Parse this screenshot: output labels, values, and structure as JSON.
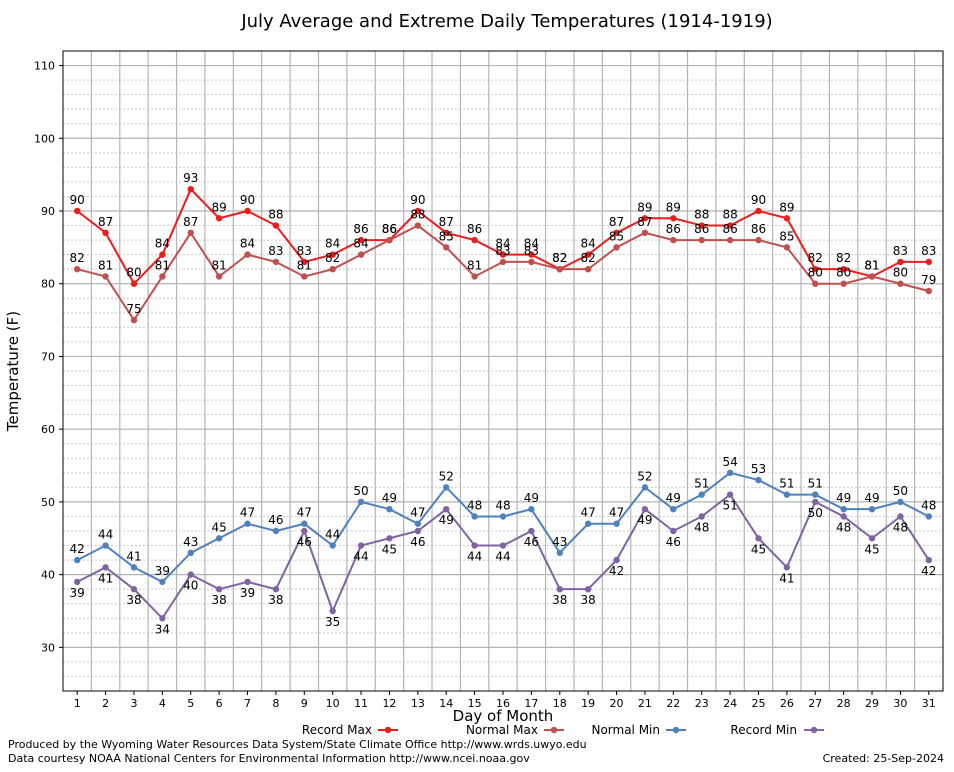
{
  "chart_data": {
    "type": "line",
    "title": "July Average and Extreme Daily Temperatures (1914-1919)",
    "xlabel": "Day of Month",
    "ylabel": "Temperature (F)",
    "ylim": [
      24,
      112
    ],
    "y_ticks": [
      30,
      40,
      50,
      60,
      70,
      80,
      90,
      100,
      110
    ],
    "x": [
      1,
      2,
      3,
      4,
      5,
      6,
      7,
      8,
      9,
      10,
      11,
      12,
      13,
      14,
      15,
      16,
      17,
      18,
      19,
      20,
      21,
      22,
      23,
      24,
      25,
      26,
      27,
      28,
      29,
      30,
      31
    ],
    "grid": true,
    "legend_position": "bottom",
    "series": [
      {
        "name": "Record Max",
        "color": "#ee1c1c",
        "values": [
          90,
          87,
          80,
          84,
          93,
          89,
          90,
          88,
          83,
          84,
          86,
          86,
          90,
          87,
          86,
          84,
          84,
          82,
          84,
          87,
          89,
          89,
          88,
          88,
          90,
          89,
          82,
          82,
          81,
          83,
          83
        ]
      },
      {
        "name": "Normal Max",
        "color": "#c0504d",
        "values": [
          82,
          81,
          75,
          81,
          87,
          81,
          84,
          83,
          81,
          82,
          84,
          86,
          88,
          85,
          81,
          83,
          83,
          82,
          82,
          85,
          87,
          86,
          86,
          86,
          86,
          85,
          80,
          80,
          81,
          80,
          79
        ]
      },
      {
        "name": "Normal Min",
        "color": "#4f81bd",
        "values": [
          42,
          44,
          41,
          39,
          43,
          45,
          47,
          46,
          47,
          44,
          50,
          49,
          47,
          52,
          48,
          48,
          49,
          43,
          47,
          47,
          52,
          49,
          51,
          54,
          53,
          51,
          51,
          49,
          49,
          50,
          48
        ]
      },
      {
        "name": "Record Min",
        "color": "#8064a2",
        "values": [
          39,
          41,
          38,
          34,
          40,
          38,
          39,
          38,
          46,
          35,
          44,
          45,
          46,
          49,
          44,
          44,
          46,
          38,
          38,
          42,
          49,
          46,
          48,
          51,
          45,
          41,
          50,
          48,
          45,
          48,
          42
        ]
      }
    ]
  },
  "footer": {
    "produced_by": "Produced by the Wyoming Water Resources Data System/State Climate Office http://www.wrds.uwyo.edu",
    "courtesy": "Data courtesy NOAA National Centers for Environmental Information http://www.ncei.noaa.gov",
    "created": "Created: 25-Sep-2024"
  }
}
